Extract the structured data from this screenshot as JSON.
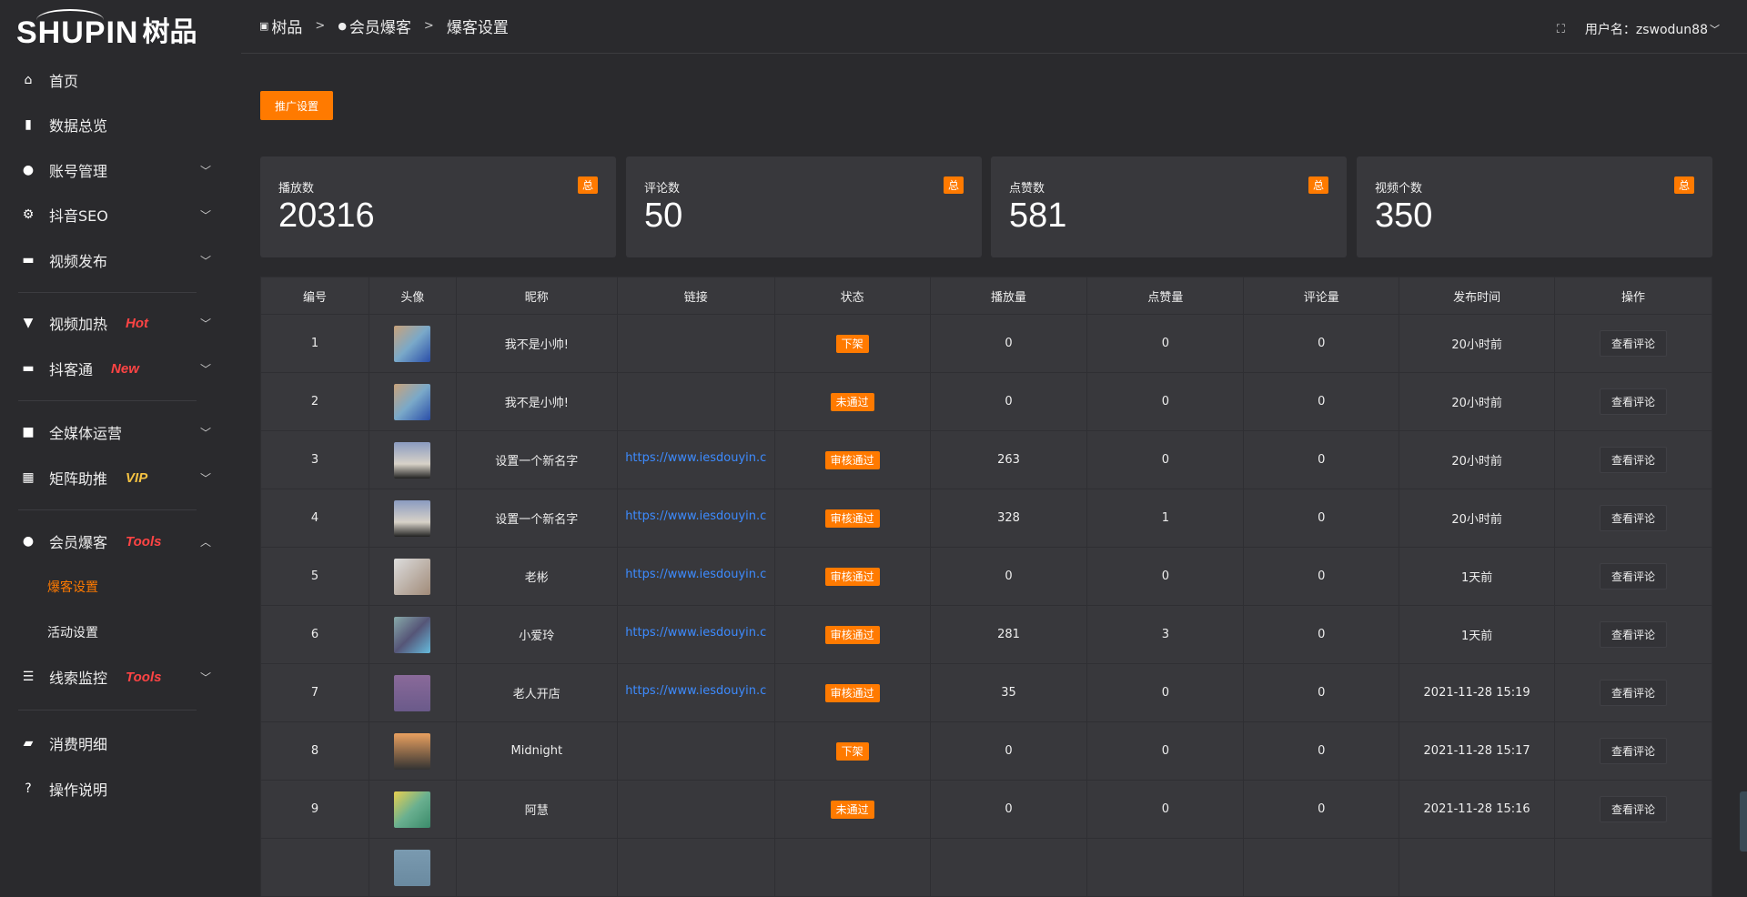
{
  "logo": {
    "en": "SHUPIN",
    "cn": "树品"
  },
  "sidebar": {
    "items": [
      {
        "label": "首页",
        "icon": "home-icon",
        "glyph": "⌂"
      },
      {
        "label": "数据总览",
        "icon": "bar-chart-icon",
        "glyph": "▮"
      },
      {
        "label": "账号管理",
        "icon": "user-icon",
        "glyph": "●",
        "chevron": "﹀"
      },
      {
        "label": "抖音SEO",
        "icon": "gear-icon",
        "glyph": "⚙",
        "chevron": "﹀"
      },
      {
        "label": "视频发布",
        "icon": "camera-icon",
        "glyph": "▬",
        "chevron": "﹀"
      },
      {
        "label": "视频加热",
        "icon": "monitor-icon",
        "glyph": "▼",
        "tag": "Hot",
        "tag_color": "#ff4444",
        "chevron": "﹀"
      },
      {
        "label": "抖客通",
        "icon": "chat-icon",
        "glyph": "▬",
        "tag": "New",
        "tag_color": "#ff4444",
        "chevron": "﹀"
      },
      {
        "label": "全媒体运营",
        "icon": "desktop-icon",
        "glyph": "■",
        "chevron": "﹀"
      },
      {
        "label": "矩阵助推",
        "icon": "grid-icon",
        "glyph": "▦",
        "tag": "VIP",
        "tag_color": "#f5c242",
        "chevron": "﹀"
      },
      {
        "label": "会员爆客",
        "icon": "user-icon",
        "glyph": "●",
        "tag": "Tools",
        "tag_color": "#ff4444",
        "chevron": "︿",
        "sub": [
          {
            "label": "爆客设置",
            "active": true
          },
          {
            "label": "活动设置"
          }
        ]
      },
      {
        "label": "线索监控",
        "icon": "sliders-icon",
        "glyph": "☰",
        "tag": "Tools",
        "tag_color": "#ff4444",
        "chevron": "﹀"
      },
      {
        "label": "消费明细",
        "icon": "wallet-icon",
        "glyph": "▰"
      },
      {
        "label": "操作说明",
        "icon": "help-icon",
        "glyph": "?"
      }
    ]
  },
  "breadcrumb": [
    "树品",
    "会员爆客",
    "爆客设置"
  ],
  "user": {
    "label": "用户名：zswodun88"
  },
  "promo_button": "推广设置",
  "stats": [
    {
      "label": "播放数",
      "value": "20316",
      "badge": "总"
    },
    {
      "label": "评论数",
      "value": "50",
      "badge": "总"
    },
    {
      "label": "点赞数",
      "value": "581",
      "badge": "总"
    },
    {
      "label": "视频个数",
      "value": "350",
      "badge": "总"
    }
  ],
  "accent": "#ff7a00",
  "table": {
    "headers": [
      "编号",
      "头像",
      "昵称",
      "链接",
      "状态",
      "播放量",
      "点赞量",
      "评论量",
      "发布时间",
      "操作"
    ],
    "rows": [
      {
        "id": "1",
        "name": "我不是小帅!",
        "link": "",
        "status": "下架",
        "plays": "0",
        "likes": "0",
        "comments": "0",
        "time": "20小时前",
        "action": "查看评论"
      },
      {
        "id": "2",
        "name": "我不是小帅!",
        "link": "",
        "status": "未通过",
        "plays": "0",
        "likes": "0",
        "comments": "0",
        "time": "20小时前",
        "action": "查看评论"
      },
      {
        "id": "3",
        "name": "设置一个新名字",
        "link": "https://www.iesdouyin.c",
        "status": "审核通过",
        "plays": "263",
        "likes": "0",
        "comments": "0",
        "time": "20小时前",
        "action": "查看评论"
      },
      {
        "id": "4",
        "name": "设置一个新名字",
        "link": "https://www.iesdouyin.c",
        "status": "审核通过",
        "plays": "328",
        "likes": "1",
        "comments": "0",
        "time": "20小时前",
        "action": "查看评论"
      },
      {
        "id": "5",
        "name": "老彬",
        "link": "https://www.iesdouyin.c",
        "status": "审核通过",
        "plays": "0",
        "likes": "0",
        "comments": "0",
        "time": "1天前",
        "action": "查看评论"
      },
      {
        "id": "6",
        "name": "小爱玲",
        "link": "https://www.iesdouyin.c",
        "status": "审核通过",
        "plays": "281",
        "likes": "3",
        "comments": "0",
        "time": "1天前",
        "action": "查看评论"
      },
      {
        "id": "7",
        "name": "老人开店",
        "link": "https://www.iesdouyin.c",
        "status": "审核通过",
        "plays": "35",
        "likes": "0",
        "comments": "0",
        "time": "2021-11-28 15:19",
        "action": "查看评论"
      },
      {
        "id": "8",
        "name": "Midnight",
        "link": "",
        "status": "下架",
        "plays": "0",
        "likes": "0",
        "comments": "0",
        "time": "2021-11-28 15:17",
        "action": "查看评论"
      },
      {
        "id": "9",
        "name": "阿慧",
        "link": "",
        "status": "未通过",
        "plays": "0",
        "likes": "0",
        "comments": "0",
        "time": "2021-11-28 15:16",
        "action": "查看评论"
      },
      {
        "id": "",
        "name": "",
        "link": "",
        "status": "",
        "plays": "",
        "likes": "",
        "comments": "",
        "time": "",
        "action": ""
      }
    ]
  }
}
